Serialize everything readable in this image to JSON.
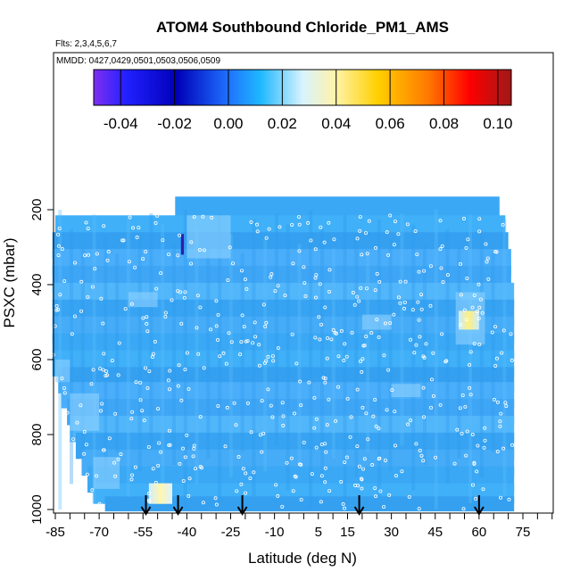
{
  "chart_data": {
    "type": "heatmap",
    "title": "ATOM4 Southbound Chloride_PM1_AMS",
    "flights_label": "Flts: 2,3,4,5,6,7",
    "dates_label": "MMDD: 0427,0429,0501,0503,0506,0509",
    "xlabel": "Latitude (deg N)",
    "ylabel": "PSXC (mbar)",
    "xlim": [
      -88,
      88
    ],
    "ylim": [
      1020,
      50
    ],
    "x_ticks": [
      -85,
      -70,
      -55,
      -40,
      -25,
      -10,
      5,
      15,
      30,
      45,
      60,
      75
    ],
    "x_tick_labels": [
      "-85",
      "-70",
      "-55",
      "-40",
      "-25",
      "-10",
      "5",
      "15",
      "30",
      "45",
      "60",
      "75"
    ],
    "y_ticks": [
      200,
      400,
      600,
      800,
      1000
    ],
    "y_tick_labels": [
      "200",
      "400",
      "600",
      "800",
      "1000"
    ],
    "colorbar": {
      "min": -0.05,
      "max": 0.105,
      "ticks": [
        -0.04,
        -0.02,
        0.0,
        0.02,
        0.04,
        0.06,
        0.08,
        0.1
      ],
      "tick_labels": [
        "-0.04",
        "-0.02",
        "0.00",
        "0.02",
        "0.04",
        "0.06",
        "0.08",
        "0.10"
      ],
      "colors": [
        "#7f2ff0",
        "#0000b8",
        "#1f6fff",
        "#1fb8ff",
        "#ffffff",
        "#ffe84a",
        "#ff7a00",
        "#ff0000",
        "#a01818"
      ]
    },
    "background_value": 0.01,
    "features": [
      {
        "lat_range": [
          -53,
          -45
        ],
        "p_range": [
          930,
          985
        ],
        "value": 0.045,
        "description": "yellow patch near surface"
      },
      {
        "lat_range": [
          53,
          60
        ],
        "p_range": [
          470,
          520
        ],
        "value": 0.045,
        "description": "yellow patch mid-troposphere"
      },
      {
        "lat_range": [
          -42,
          -41
        ],
        "p_range": [
          265,
          320
        ],
        "value": -0.03,
        "description": "dark blue streak"
      }
    ],
    "arrows_lat": [
      -54,
      -43,
      -21,
      19,
      60
    ],
    "arrow_color": "#000000",
    "grid": false
  }
}
